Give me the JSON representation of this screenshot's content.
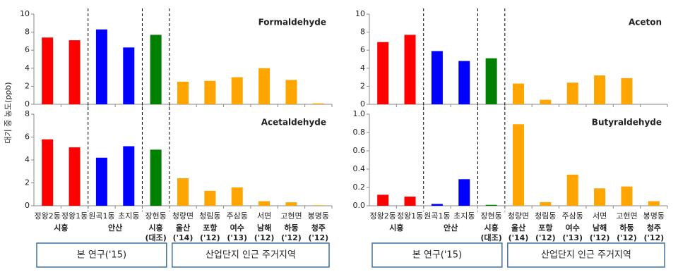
{
  "chart_data": [
    {
      "type": "bar",
      "title": "Formaldehyde",
      "ylabel": "대기 중 농도(ppb)",
      "values": [
        7.4,
        7.1,
        8.3,
        6.3,
        7.7,
        2.5,
        2.6,
        3.0,
        4.0,
        2.7,
        0.1
      ],
      "colors": [
        "#ff0000",
        "#ff0000",
        "#0000ff",
        "#0000ff",
        "#008000",
        "#ffa500",
        "#ffa500",
        "#ffa500",
        "#ffa500",
        "#ffa500",
        "#ffa500"
      ],
      "ylim": [
        0,
        10
      ],
      "yticks": [
        0,
        2,
        4,
        6,
        8,
        10
      ]
    },
    {
      "type": "bar",
      "title": "Acetaldehyde",
      "categories": [
        "정왕2동",
        "정왕1동",
        "원곡1동",
        "초지동",
        "장현동",
        "청량면",
        "청림동",
        "주삼동",
        "서면",
        "고현면",
        "봉명동"
      ],
      "sublabels": [
        [
          "시흥"
        ],
        null,
        [
          "안산"
        ],
        null,
        [
          "시흥",
          "(대조)"
        ],
        [
          "울산",
          "('14)"
        ],
        [
          "포항",
          "('12)"
        ],
        [
          "여수",
          "('13)"
        ],
        [
          "남해",
          "('12)"
        ],
        [
          "하동",
          "('12)"
        ],
        [
          "청주",
          "('12)"
        ]
      ],
      "boxes": [
        "본 연구('15)",
        "산업단지 인근 주거지역"
      ],
      "values": [
        5.8,
        5.1,
        4.2,
        5.2,
        4.9,
        2.4,
        1.3,
        1.6,
        0.4,
        0.3,
        0.05
      ],
      "colors": [
        "#ff0000",
        "#ff0000",
        "#0000ff",
        "#0000ff",
        "#008000",
        "#ffa500",
        "#ffa500",
        "#ffa500",
        "#ffa500",
        "#ffa500",
        "#ffa500"
      ],
      "ylim": [
        0,
        8
      ],
      "yticks": [
        0,
        2,
        4,
        6,
        8
      ]
    },
    {
      "type": "bar",
      "title": "Aceton",
      "values": [
        6.9,
        7.7,
        5.9,
        4.8,
        5.1,
        2.3,
        0.5,
        2.4,
        3.2,
        2.9,
        0
      ],
      "colors": [
        "#ff0000",
        "#ff0000",
        "#0000ff",
        "#0000ff",
        "#008000",
        "#ffa500",
        "#ffa500",
        "#ffa500",
        "#ffa500",
        "#ffa500",
        "#ffa500"
      ],
      "ylim": [
        0,
        10
      ],
      "yticks": [
        0,
        2,
        4,
        6,
        8,
        10
      ]
    },
    {
      "type": "bar",
      "title": "Butyraldehyde",
      "categories": [
        "정왕2동",
        "정왕1동",
        "원곡1동",
        "초지동",
        "장현동",
        "청량면",
        "청림동",
        "주삼동",
        "서면",
        "고현면",
        "봉명동"
      ],
      "sublabels": [
        [
          "시흥"
        ],
        null,
        [
          "안산"
        ],
        null,
        [
          "시흥",
          "(대조)"
        ],
        [
          "울산",
          "('14)"
        ],
        [
          "포항",
          "('12)"
        ],
        [
          "여수",
          "('13)"
        ],
        [
          "남해",
          "('12)"
        ],
        [
          "하동",
          "('12)"
        ],
        [
          "청주",
          "('12)"
        ]
      ],
      "boxes": [
        "본 연구('15)",
        "산업단지 인근 주거지역"
      ],
      "values": [
        0.12,
        0.1,
        0.02,
        0.29,
        0.01,
        0.89,
        0.04,
        0.34,
        0.19,
        0.21,
        0.05
      ],
      "colors": [
        "#ff0000",
        "#ff0000",
        "#0000ff",
        "#0000ff",
        "#008000",
        "#ffa500",
        "#ffa500",
        "#ffa500",
        "#ffa500",
        "#ffa500",
        "#ffa500"
      ],
      "ylim": [
        0,
        1
      ],
      "yticks": [
        {
          "value": 0,
          "label": "0.0"
        },
        {
          "value": 0.2,
          "label": "0.2"
        },
        {
          "value": 0.4,
          "label": "0.4"
        },
        {
          "value": 0.6,
          "label": "0.6"
        },
        {
          "value": 0.8,
          "label": "0.8"
        },
        {
          "value": 1,
          "label": "1.0"
        }
      ]
    }
  ]
}
